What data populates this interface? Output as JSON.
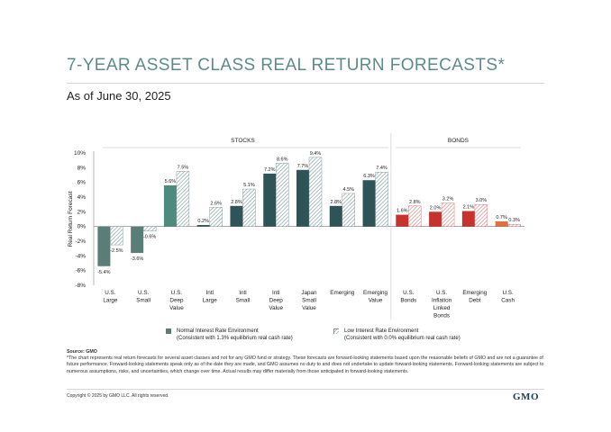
{
  "header": {
    "title": "7-YEAR ASSET CLASS REAL RETURN FORECASTS*",
    "as_of": "As of June 30, 2025"
  },
  "legend": {
    "normal": {
      "line1": "Normal Interest Rate Environment",
      "line2": "(Consistent with 1.3% equilibrium real cash rate)"
    },
    "low": {
      "line1": "Low Interest Rate Environment",
      "line2": "(Consistent with 0.0% equilibrium real cash rate)"
    }
  },
  "footer": {
    "source": "Source: GMO",
    "note": "*The chart represents real return forecasts for several asset classes and not for any GMO fund or strategy. These forecasts are forward-looking statements based upon the reasonable beliefs of GMO and are not a guarantee of future performance. Forward-looking statements speak only as of the date they are made, and GMO assumes no duty to and does not undertake to update forward-looking statements. Forward-looking statements are subject to numerous assumptions, risks, and uncertainties, which change over time. Actual results may differ materially from those anticipated in forward-looking statements.",
    "copyright": "Copyright © 2025 by GMO LLC. All rights reserved.",
    "logo": "GMO"
  },
  "colors": {
    "stocks_normal": "#4f8a7e",
    "stocks_large_small": "#5a7d78",
    "bonds_normal": "#c8322c",
    "cash_normal": "#e36f40",
    "low_hatch_stocks": "#9fb4b8",
    "low_hatch_bonds": "#e4a0a0",
    "title": "#5b8c8a"
  },
  "chart_data": {
    "type": "bar",
    "ylabel": "Real Return Forecast",
    "ylim": [
      -8,
      10
    ],
    "yticks": [
      "10%",
      "8%",
      "6%",
      "4%",
      "2%",
      "0%",
      "-2%",
      "-4%",
      "-6%",
      "-8%"
    ],
    "groups": [
      {
        "label": "STOCKS",
        "count": 9
      },
      {
        "label": "BONDS",
        "count": 4
      }
    ],
    "categories": [
      [
        "U.S.",
        "Large"
      ],
      [
        "U.S.",
        "Small"
      ],
      [
        "U.S.",
        "Deep",
        "Value"
      ],
      [
        "Intl",
        "Large"
      ],
      [
        "Intl",
        "Small"
      ],
      [
        "Intl",
        "Deep",
        "Value"
      ],
      [
        "Japan",
        "Small",
        "Value"
      ],
      [
        "Emerging"
      ],
      [
        "Emerging",
        "Value"
      ],
      [
        "U.S.",
        "Bonds"
      ],
      [
        "U.S.",
        "Inflation",
        "Linked",
        "Bonds"
      ],
      [
        "Emerging",
        "Debt"
      ],
      [
        "U.S.",
        "Cash"
      ]
    ],
    "series": [
      {
        "name": "Normal Interest Rate Environment",
        "values": [
          -5.4,
          -3.6,
          5.6,
          0.2,
          2.8,
          7.2,
          7.7,
          2.8,
          6.3,
          1.6,
          2.0,
          2.1,
          0.7
        ],
        "labels": [
          "-5.4%",
          "-3.6%",
          "5.6%",
          "0.2%",
          "2.8%",
          "7.2%",
          "7.7%",
          "2.8%",
          "6.3%",
          "1.6%",
          "2.0%",
          "2.1%",
          "0.7%"
        ]
      },
      {
        "name": "Low Interest Rate Environment",
        "values": [
          -2.5,
          -0.6,
          7.5,
          2.6,
          5.1,
          8.6,
          9.4,
          4.5,
          7.4,
          2.8,
          3.2,
          3.0,
          0.3
        ],
        "labels": [
          "-2.5%",
          "-0.6%",
          "7.5%",
          "2.6%",
          "5.1%",
          "8.6%",
          "9.4%",
          "4.5%",
          "7.4%",
          "2.8%",
          "3.2%",
          "3.0%",
          "0.3%"
        ]
      }
    ]
  }
}
